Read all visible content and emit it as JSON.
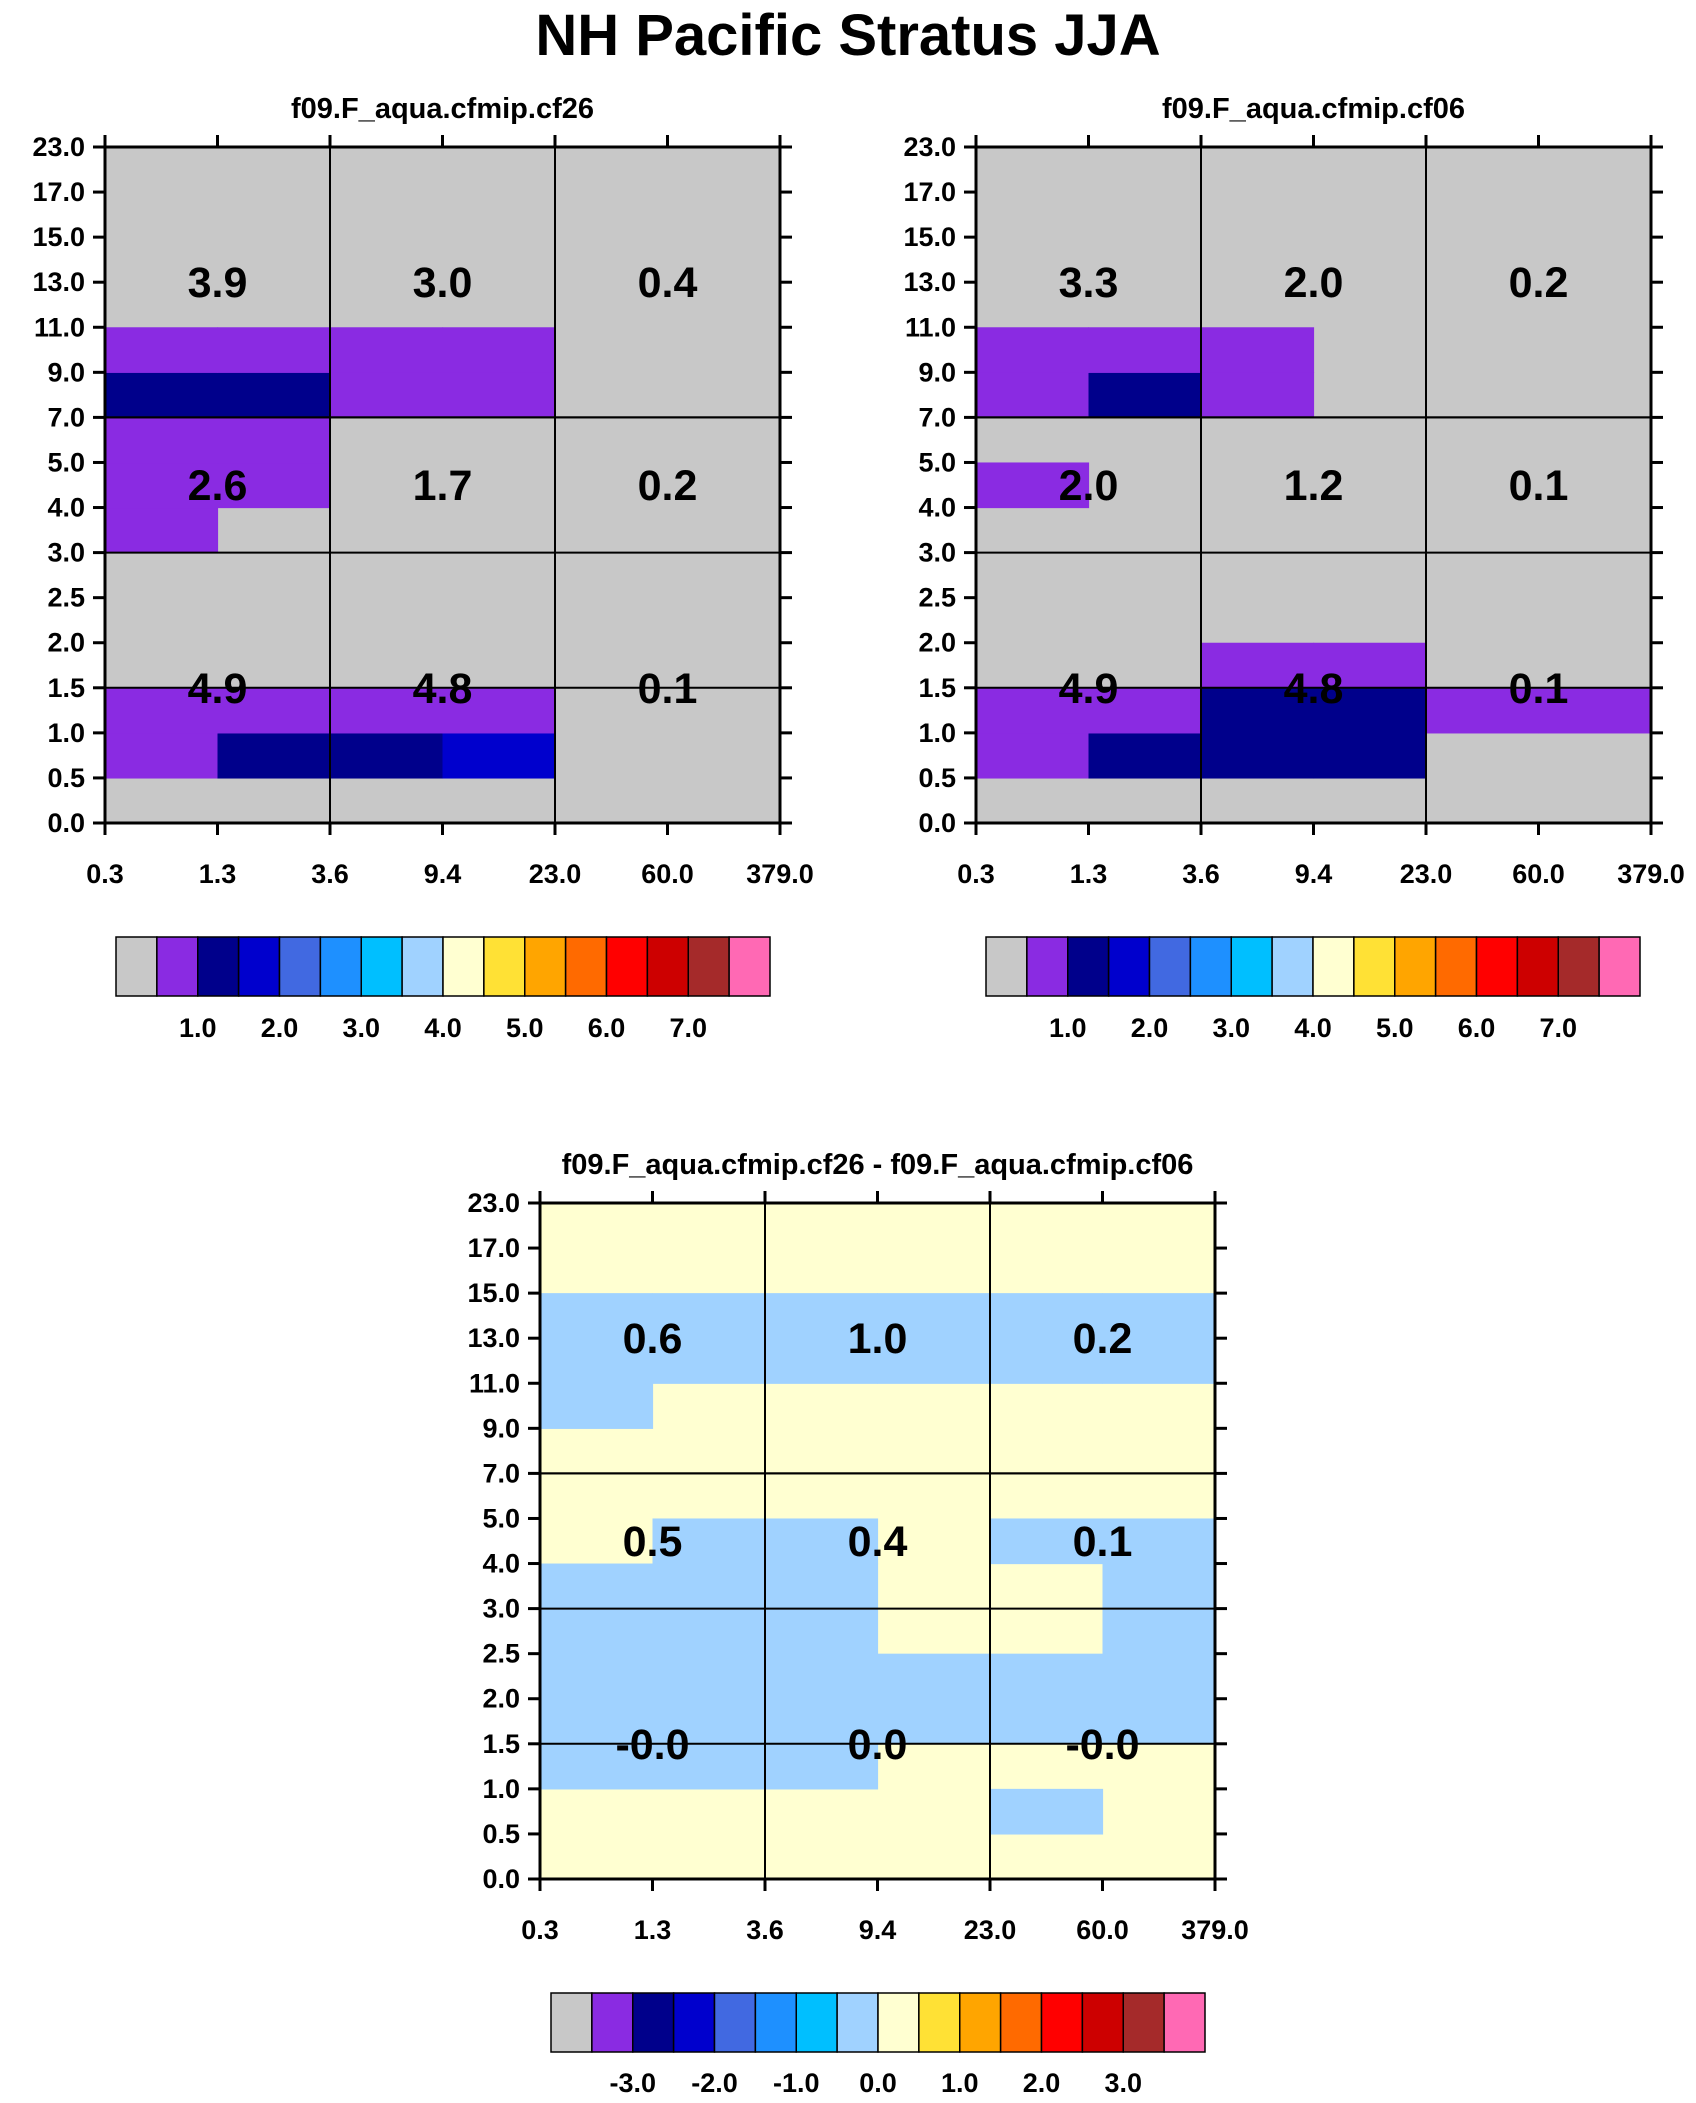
{
  "title": "NH Pacific Stratus JJA",
  "chart_data": [
    {
      "type": "heatmap",
      "title": "f09.F_aqua.cfmip.cf26",
      "x_ticks": [
        "0.3",
        "1.3",
        "3.6",
        "9.4",
        "23.0",
        "60.0",
        "379.0"
      ],
      "y_ticks": [
        "0.0",
        "0.5",
        "1.0",
        "1.5",
        "2.0",
        "2.5",
        "3.0",
        "4.0",
        "5.0",
        "7.0",
        "9.0",
        "11.0",
        "13.0",
        "15.0",
        "17.0",
        "23.0"
      ],
      "cells": [
        {
          "xi": 0,
          "yi": 1,
          "bin": 1
        },
        {
          "xi": 1,
          "yi": 1,
          "bin": 2
        },
        {
          "xi": 2,
          "yi": 1,
          "bin": 2
        },
        {
          "xi": 3,
          "yi": 1,
          "bin": 3
        },
        {
          "xi": 0,
          "yi": 2,
          "bin": 1
        },
        {
          "xi": 1,
          "yi": 2,
          "bin": 1
        },
        {
          "xi": 2,
          "yi": 2,
          "bin": 1
        },
        {
          "xi": 3,
          "yi": 2,
          "bin": 1
        },
        {
          "xi": 0,
          "yi": 6,
          "bin": 1
        },
        {
          "xi": 0,
          "yi": 7,
          "bin": 1
        },
        {
          "xi": 1,
          "yi": 7,
          "bin": 1
        },
        {
          "xi": 0,
          "yi": 8,
          "bin": 1
        },
        {
          "xi": 1,
          "yi": 8,
          "bin": 1
        },
        {
          "xi": 0,
          "yi": 9,
          "bin": 2
        },
        {
          "xi": 1,
          "yi": 9,
          "bin": 2
        },
        {
          "xi": 2,
          "yi": 9,
          "bin": 1
        },
        {
          "xi": 3,
          "yi": 9,
          "bin": 1
        },
        {
          "xi": 0,
          "yi": 10,
          "bin": 1
        },
        {
          "xi": 1,
          "yi": 10,
          "bin": 1
        },
        {
          "xi": 2,
          "yi": 10,
          "bin": 1
        },
        {
          "xi": 3,
          "yi": 10,
          "bin": 1
        }
      ],
      "background_bin": 0,
      "block_values": [
        {
          "col": 0,
          "row": 0,
          "value": "4.9"
        },
        {
          "col": 1,
          "row": 0,
          "value": "4.8"
        },
        {
          "col": 2,
          "row": 0,
          "value": "0.1"
        },
        {
          "col": 0,
          "row": 1,
          "value": "2.6"
        },
        {
          "col": 1,
          "row": 1,
          "value": "1.7"
        },
        {
          "col": 2,
          "row": 1,
          "value": "0.2"
        },
        {
          "col": 0,
          "row": 2,
          "value": "3.9"
        },
        {
          "col": 1,
          "row": 2,
          "value": "3.0"
        },
        {
          "col": 2,
          "row": 2,
          "value": "0.4"
        }
      ]
    },
    {
      "type": "heatmap",
      "title": "f09.F_aqua.cfmip.cf06",
      "x_ticks": [
        "0.3",
        "1.3",
        "3.6",
        "9.4",
        "23.0",
        "60.0",
        "379.0"
      ],
      "y_ticks": [
        "0.0",
        "0.5",
        "1.0",
        "1.5",
        "2.0",
        "2.5",
        "3.0",
        "4.0",
        "5.0",
        "7.0",
        "9.0",
        "11.0",
        "13.0",
        "15.0",
        "17.0",
        "23.0"
      ],
      "cells": [
        {
          "xi": 0,
          "yi": 1,
          "bin": 1
        },
        {
          "xi": 1,
          "yi": 1,
          "bin": 2
        },
        {
          "xi": 2,
          "yi": 1,
          "bin": 2
        },
        {
          "xi": 3,
          "yi": 1,
          "bin": 2
        },
        {
          "xi": 0,
          "yi": 2,
          "bin": 1
        },
        {
          "xi": 1,
          "yi": 2,
          "bin": 1
        },
        {
          "xi": 2,
          "yi": 2,
          "bin": 2
        },
        {
          "xi": 3,
          "yi": 2,
          "bin": 2
        },
        {
          "xi": 4,
          "yi": 2,
          "bin": 1
        },
        {
          "xi": 5,
          "yi": 2,
          "bin": 1
        },
        {
          "xi": 2,
          "yi": 3,
          "bin": 1
        },
        {
          "xi": 3,
          "yi": 3,
          "bin": 1
        },
        {
          "xi": 0,
          "yi": 7,
          "bin": 1
        },
        {
          "xi": 0,
          "yi": 9,
          "bin": 1
        },
        {
          "xi": 1,
          "yi": 9,
          "bin": 2
        },
        {
          "xi": 2,
          "yi": 9,
          "bin": 1
        },
        {
          "xi": 0,
          "yi": 10,
          "bin": 1
        },
        {
          "xi": 1,
          "yi": 10,
          "bin": 1
        },
        {
          "xi": 2,
          "yi": 10,
          "bin": 1
        }
      ],
      "background_bin": 0,
      "block_values": [
        {
          "col": 0,
          "row": 0,
          "value": "4.9"
        },
        {
          "col": 1,
          "row": 0,
          "value": "4.8"
        },
        {
          "col": 2,
          "row": 0,
          "value": "0.1"
        },
        {
          "col": 0,
          "row": 1,
          "value": "2.0"
        },
        {
          "col": 1,
          "row": 1,
          "value": "1.2"
        },
        {
          "col": 2,
          "row": 1,
          "value": "0.1"
        },
        {
          "col": 0,
          "row": 2,
          "value": "3.3"
        },
        {
          "col": 1,
          "row": 2,
          "value": "2.0"
        },
        {
          "col": 2,
          "row": 2,
          "value": "0.2"
        }
      ]
    },
    {
      "type": "heatmap",
      "title": "f09.F_aqua.cfmip.cf26 - f09.F_aqua.cfmip.cf06",
      "x_ticks": [
        "0.3",
        "1.3",
        "3.6",
        "9.4",
        "23.0",
        "60.0",
        "379.0"
      ],
      "y_ticks": [
        "0.0",
        "0.5",
        "1.0",
        "1.5",
        "2.0",
        "2.5",
        "3.0",
        "4.0",
        "5.0",
        "7.0",
        "9.0",
        "11.0",
        "13.0",
        "15.0",
        "17.0",
        "23.0"
      ],
      "cells": [
        {
          "xi": 4,
          "yi": 1,
          "bin": 7
        },
        {
          "xi": 0,
          "yi": 2,
          "bin": 7
        },
        {
          "xi": 1,
          "yi": 2,
          "bin": 7
        },
        {
          "xi": 2,
          "yi": 2,
          "bin": 7
        },
        {
          "xi": 0,
          "yi": 3,
          "bin": 7
        },
        {
          "xi": 1,
          "yi": 3,
          "bin": 7
        },
        {
          "xi": 2,
          "yi": 3,
          "bin": 7
        },
        {
          "xi": 3,
          "yi": 3,
          "bin": 7
        },
        {
          "xi": 4,
          "yi": 3,
          "bin": 7
        },
        {
          "xi": 5,
          "yi": 3,
          "bin": 7
        },
        {
          "xi": 0,
          "yi": 4,
          "bin": 7
        },
        {
          "xi": 1,
          "yi": 4,
          "bin": 7
        },
        {
          "xi": 2,
          "yi": 4,
          "bin": 7
        },
        {
          "xi": 3,
          "yi": 4,
          "bin": 7
        },
        {
          "xi": 4,
          "yi": 4,
          "bin": 7
        },
        {
          "xi": 5,
          "yi": 4,
          "bin": 7
        },
        {
          "xi": 0,
          "yi": 5,
          "bin": 7
        },
        {
          "xi": 1,
          "yi": 5,
          "bin": 7
        },
        {
          "xi": 2,
          "yi": 5,
          "bin": 7
        },
        {
          "xi": 5,
          "yi": 5,
          "bin": 7
        },
        {
          "xi": 0,
          "yi": 6,
          "bin": 7
        },
        {
          "xi": 1,
          "yi": 6,
          "bin": 7
        },
        {
          "xi": 2,
          "yi": 6,
          "bin": 7
        },
        {
          "xi": 5,
          "yi": 6,
          "bin": 7
        },
        {
          "xi": 1,
          "yi": 7,
          "bin": 7
        },
        {
          "xi": 2,
          "yi": 7,
          "bin": 7
        },
        {
          "xi": 4,
          "yi": 7,
          "bin": 7
        },
        {
          "xi": 5,
          "yi": 7,
          "bin": 7
        },
        {
          "xi": 0,
          "yi": 10,
          "bin": 7
        },
        {
          "xi": 0,
          "yi": 11,
          "bin": 7
        },
        {
          "xi": 1,
          "yi": 11,
          "bin": 7
        },
        {
          "xi": 2,
          "yi": 11,
          "bin": 7
        },
        {
          "xi": 3,
          "yi": 11,
          "bin": 7
        },
        {
          "xi": 4,
          "yi": 11,
          "bin": 7
        },
        {
          "xi": 5,
          "yi": 11,
          "bin": 7
        },
        {
          "xi": 0,
          "yi": 12,
          "bin": 7
        },
        {
          "xi": 1,
          "yi": 12,
          "bin": 7
        },
        {
          "xi": 2,
          "yi": 12,
          "bin": 7
        },
        {
          "xi": 3,
          "yi": 12,
          "bin": 7
        },
        {
          "xi": 4,
          "yi": 12,
          "bin": 7
        },
        {
          "xi": 5,
          "yi": 12,
          "bin": 7
        }
      ],
      "background_bin": 8,
      "block_values": [
        {
          "col": 0,
          "row": 0,
          "value": "-0.0"
        },
        {
          "col": 1,
          "row": 0,
          "value": "0.0"
        },
        {
          "col": 2,
          "row": 0,
          "value": "-0.0"
        },
        {
          "col": 0,
          "row": 1,
          "value": "0.5"
        },
        {
          "col": 1,
          "row": 1,
          "value": "0.4"
        },
        {
          "col": 2,
          "row": 1,
          "value": "0.1"
        },
        {
          "col": 0,
          "row": 2,
          "value": "0.6"
        },
        {
          "col": 1,
          "row": 2,
          "value": "1.0"
        },
        {
          "col": 2,
          "row": 2,
          "value": "0.2"
        }
      ]
    }
  ],
  "colorbars": [
    {
      "labels": [
        "1.0",
        "2.0",
        "3.0",
        "4.0",
        "5.0",
        "6.0",
        "7.0"
      ]
    },
    {
      "labels": [
        "1.0",
        "2.0",
        "3.0",
        "4.0",
        "5.0",
        "6.0",
        "7.0"
      ]
    },
    {
      "labels": [
        "-3.0",
        "-2.0",
        "-1.0",
        "0.0",
        "1.0",
        "2.0",
        "3.0"
      ]
    }
  ],
  "palette": [
    "#c8c8c8",
    "#8a2be2",
    "#00008b",
    "#0000cd",
    "#4169e1",
    "#1e90ff",
    "#00bfff",
    "#a0d2ff",
    "#ffffd1",
    "#ffe135",
    "#ffa500",
    "#ff6a00",
    "#ff0000",
    "#cd0000",
    "#a52a2a",
    "#ff69b4"
  ]
}
